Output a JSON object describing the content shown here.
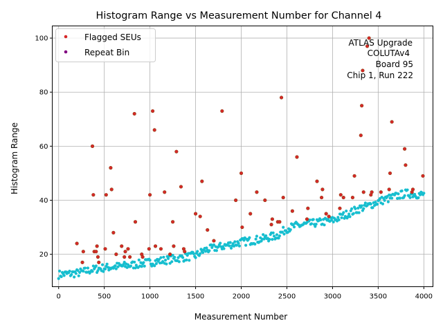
{
  "chart_data": {
    "type": "scatter",
    "title": "Histogram Range vs Measurement Number for Channel 4",
    "xlabel": "Measurement Number",
    "ylabel": "Histogram Range",
    "xlim": [
      -70,
      4100
    ],
    "ylim": [
      8,
      104.5
    ],
    "xticks": [
      0,
      500,
      1000,
      1500,
      2000,
      2500,
      3000,
      3500,
      4000
    ],
    "yticks": [
      20,
      40,
      60,
      80,
      100
    ],
    "grid": true,
    "legend_position": "top-left",
    "colors": {
      "normal": "#17becf",
      "flagged": "#d62728",
      "flagged_edge": "#8b4513",
      "repeat": "#800080"
    },
    "legend": [
      {
        "label": "Flagged SEUs",
        "color": "#d62728"
      },
      {
        "label": "Repeat Bin",
        "color": "#800080"
      }
    ],
    "annotation": [
      "ATLAS Upgrade",
      "COLUTAv4",
      "Board 95",
      "Chip 1, Run 222"
    ],
    "normal_band": [
      [
        0,
        12.5
      ],
      [
        200,
        13
      ],
      [
        400,
        14.5
      ],
      [
        500,
        15
      ],
      [
        800,
        16
      ],
      [
        1100,
        17.5
      ],
      [
        1300,
        18.5
      ],
      [
        1500,
        19.5
      ],
      [
        1600,
        21.5
      ],
      [
        1800,
        23
      ],
      [
        2000,
        24.5
      ],
      [
        2200,
        25.5
      ],
      [
        2400,
        27
      ],
      [
        2500,
        29.5
      ],
      [
        2600,
        30.5
      ],
      [
        2800,
        31.5
      ],
      [
        3000,
        32.5
      ],
      [
        3100,
        34
      ],
      [
        3200,
        35.5
      ],
      [
        3300,
        37
      ],
      [
        3400,
        38
      ],
      [
        3500,
        39.5
      ],
      [
        3700,
        41.5
      ],
      [
        3800,
        42.5
      ],
      [
        4000,
        42
      ]
    ],
    "flagged_points": [
      [
        200,
        24
      ],
      [
        260,
        17
      ],
      [
        270,
        21
      ],
      [
        370,
        60
      ],
      [
        380,
        42
      ],
      [
        390,
        21
      ],
      [
        410,
        21
      ],
      [
        420,
        23
      ],
      [
        430,
        19
      ],
      [
        440,
        17
      ],
      [
        510,
        22
      ],
      [
        520,
        42
      ],
      [
        570,
        52
      ],
      [
        580,
        44
      ],
      [
        600,
        28
      ],
      [
        630,
        20
      ],
      [
        690,
        23
      ],
      [
        720,
        19
      ],
      [
        730,
        21
      ],
      [
        760,
        22
      ],
      [
        780,
        19
      ],
      [
        830,
        72
      ],
      [
        840,
        32
      ],
      [
        910,
        20
      ],
      [
        920,
        19
      ],
      [
        990,
        22
      ],
      [
        1000,
        42
      ],
      [
        1030,
        73
      ],
      [
        1050,
        66
      ],
      [
        1060,
        23
      ],
      [
        1120,
        22
      ],
      [
        1160,
        43
      ],
      [
        1220,
        20
      ],
      [
        1250,
        32
      ],
      [
        1260,
        23
      ],
      [
        1290,
        58
      ],
      [
        1340,
        45
      ],
      [
        1370,
        22
      ],
      [
        1380,
        21
      ],
      [
        1500,
        35
      ],
      [
        1550,
        34
      ],
      [
        1570,
        47
      ],
      [
        1630,
        29
      ],
      [
        1700,
        25
      ],
      [
        1790,
        73
      ],
      [
        1940,
        40
      ],
      [
        2000,
        50
      ],
      [
        2010,
        30
      ],
      [
        2100,
        35
      ],
      [
        2170,
        43
      ],
      [
        2260,
        40
      ],
      [
        2330,
        31
      ],
      [
        2340,
        33
      ],
      [
        2400,
        32
      ],
      [
        2420,
        32
      ],
      [
        2440,
        78
      ],
      [
        2460,
        41
      ],
      [
        2560,
        36
      ],
      [
        2610,
        56
      ],
      [
        2720,
        33
      ],
      [
        2730,
        37
      ],
      [
        2830,
        47
      ],
      [
        2880,
        41
      ],
      [
        2890,
        44
      ],
      [
        2930,
        35
      ],
      [
        2960,
        34
      ],
      [
        3080,
        37
      ],
      [
        3090,
        42
      ],
      [
        3120,
        41
      ],
      [
        3220,
        41
      ],
      [
        3240,
        49
      ],
      [
        3310,
        64
      ],
      [
        3320,
        75
      ],
      [
        3330,
        88
      ],
      [
        3340,
        43
      ],
      [
        3380,
        97
      ],
      [
        3400,
        100
      ],
      [
        3420,
        42
      ],
      [
        3430,
        43
      ],
      [
        3530,
        43
      ],
      [
        3620,
        44
      ],
      [
        3630,
        50
      ],
      [
        3650,
        69
      ],
      [
        3790,
        59
      ],
      [
        3800,
        53
      ],
      [
        3870,
        43
      ],
      [
        3880,
        44
      ],
      [
        3990,
        49
      ]
    ],
    "repeat_points": []
  }
}
